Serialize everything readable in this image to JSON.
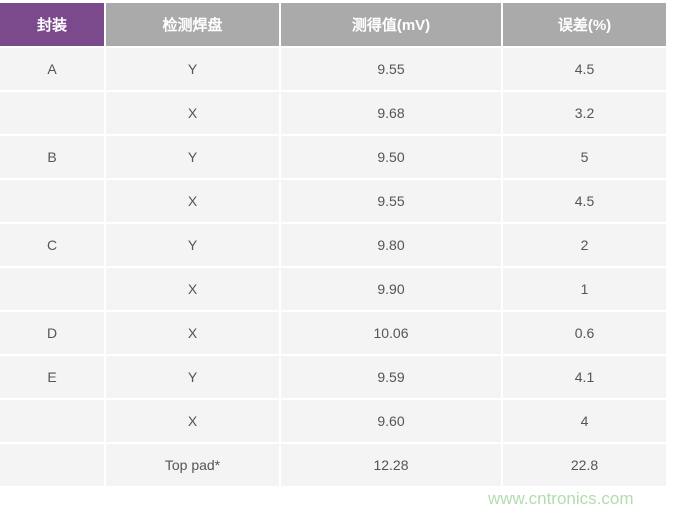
{
  "table": {
    "headers": [
      "封装",
      "检测焊盘",
      "测得值(mV)",
      "误差(%)"
    ],
    "header_colors": {
      "first": "#7b4a8c",
      "others": "#aaaaaa"
    },
    "rows": [
      [
        "A",
        "Y",
        "9.55",
        "4.5"
      ],
      [
        "",
        "X",
        "9.68",
        "3.2"
      ],
      [
        "B",
        "Y",
        "9.50",
        "5"
      ],
      [
        "",
        "X",
        "9.55",
        "4.5"
      ],
      [
        "C",
        "Y",
        "9.80",
        "2"
      ],
      [
        "",
        "X",
        "9.90",
        "1"
      ],
      [
        "D",
        "X",
        "10.06",
        "0.6"
      ],
      [
        "E",
        "Y",
        "9.59",
        "4.1"
      ],
      [
        "",
        "X",
        "9.60",
        "4"
      ],
      [
        "",
        "Top pad*",
        "12.28",
        "22.8"
      ]
    ]
  },
  "watermark": "www.cntronics.com"
}
